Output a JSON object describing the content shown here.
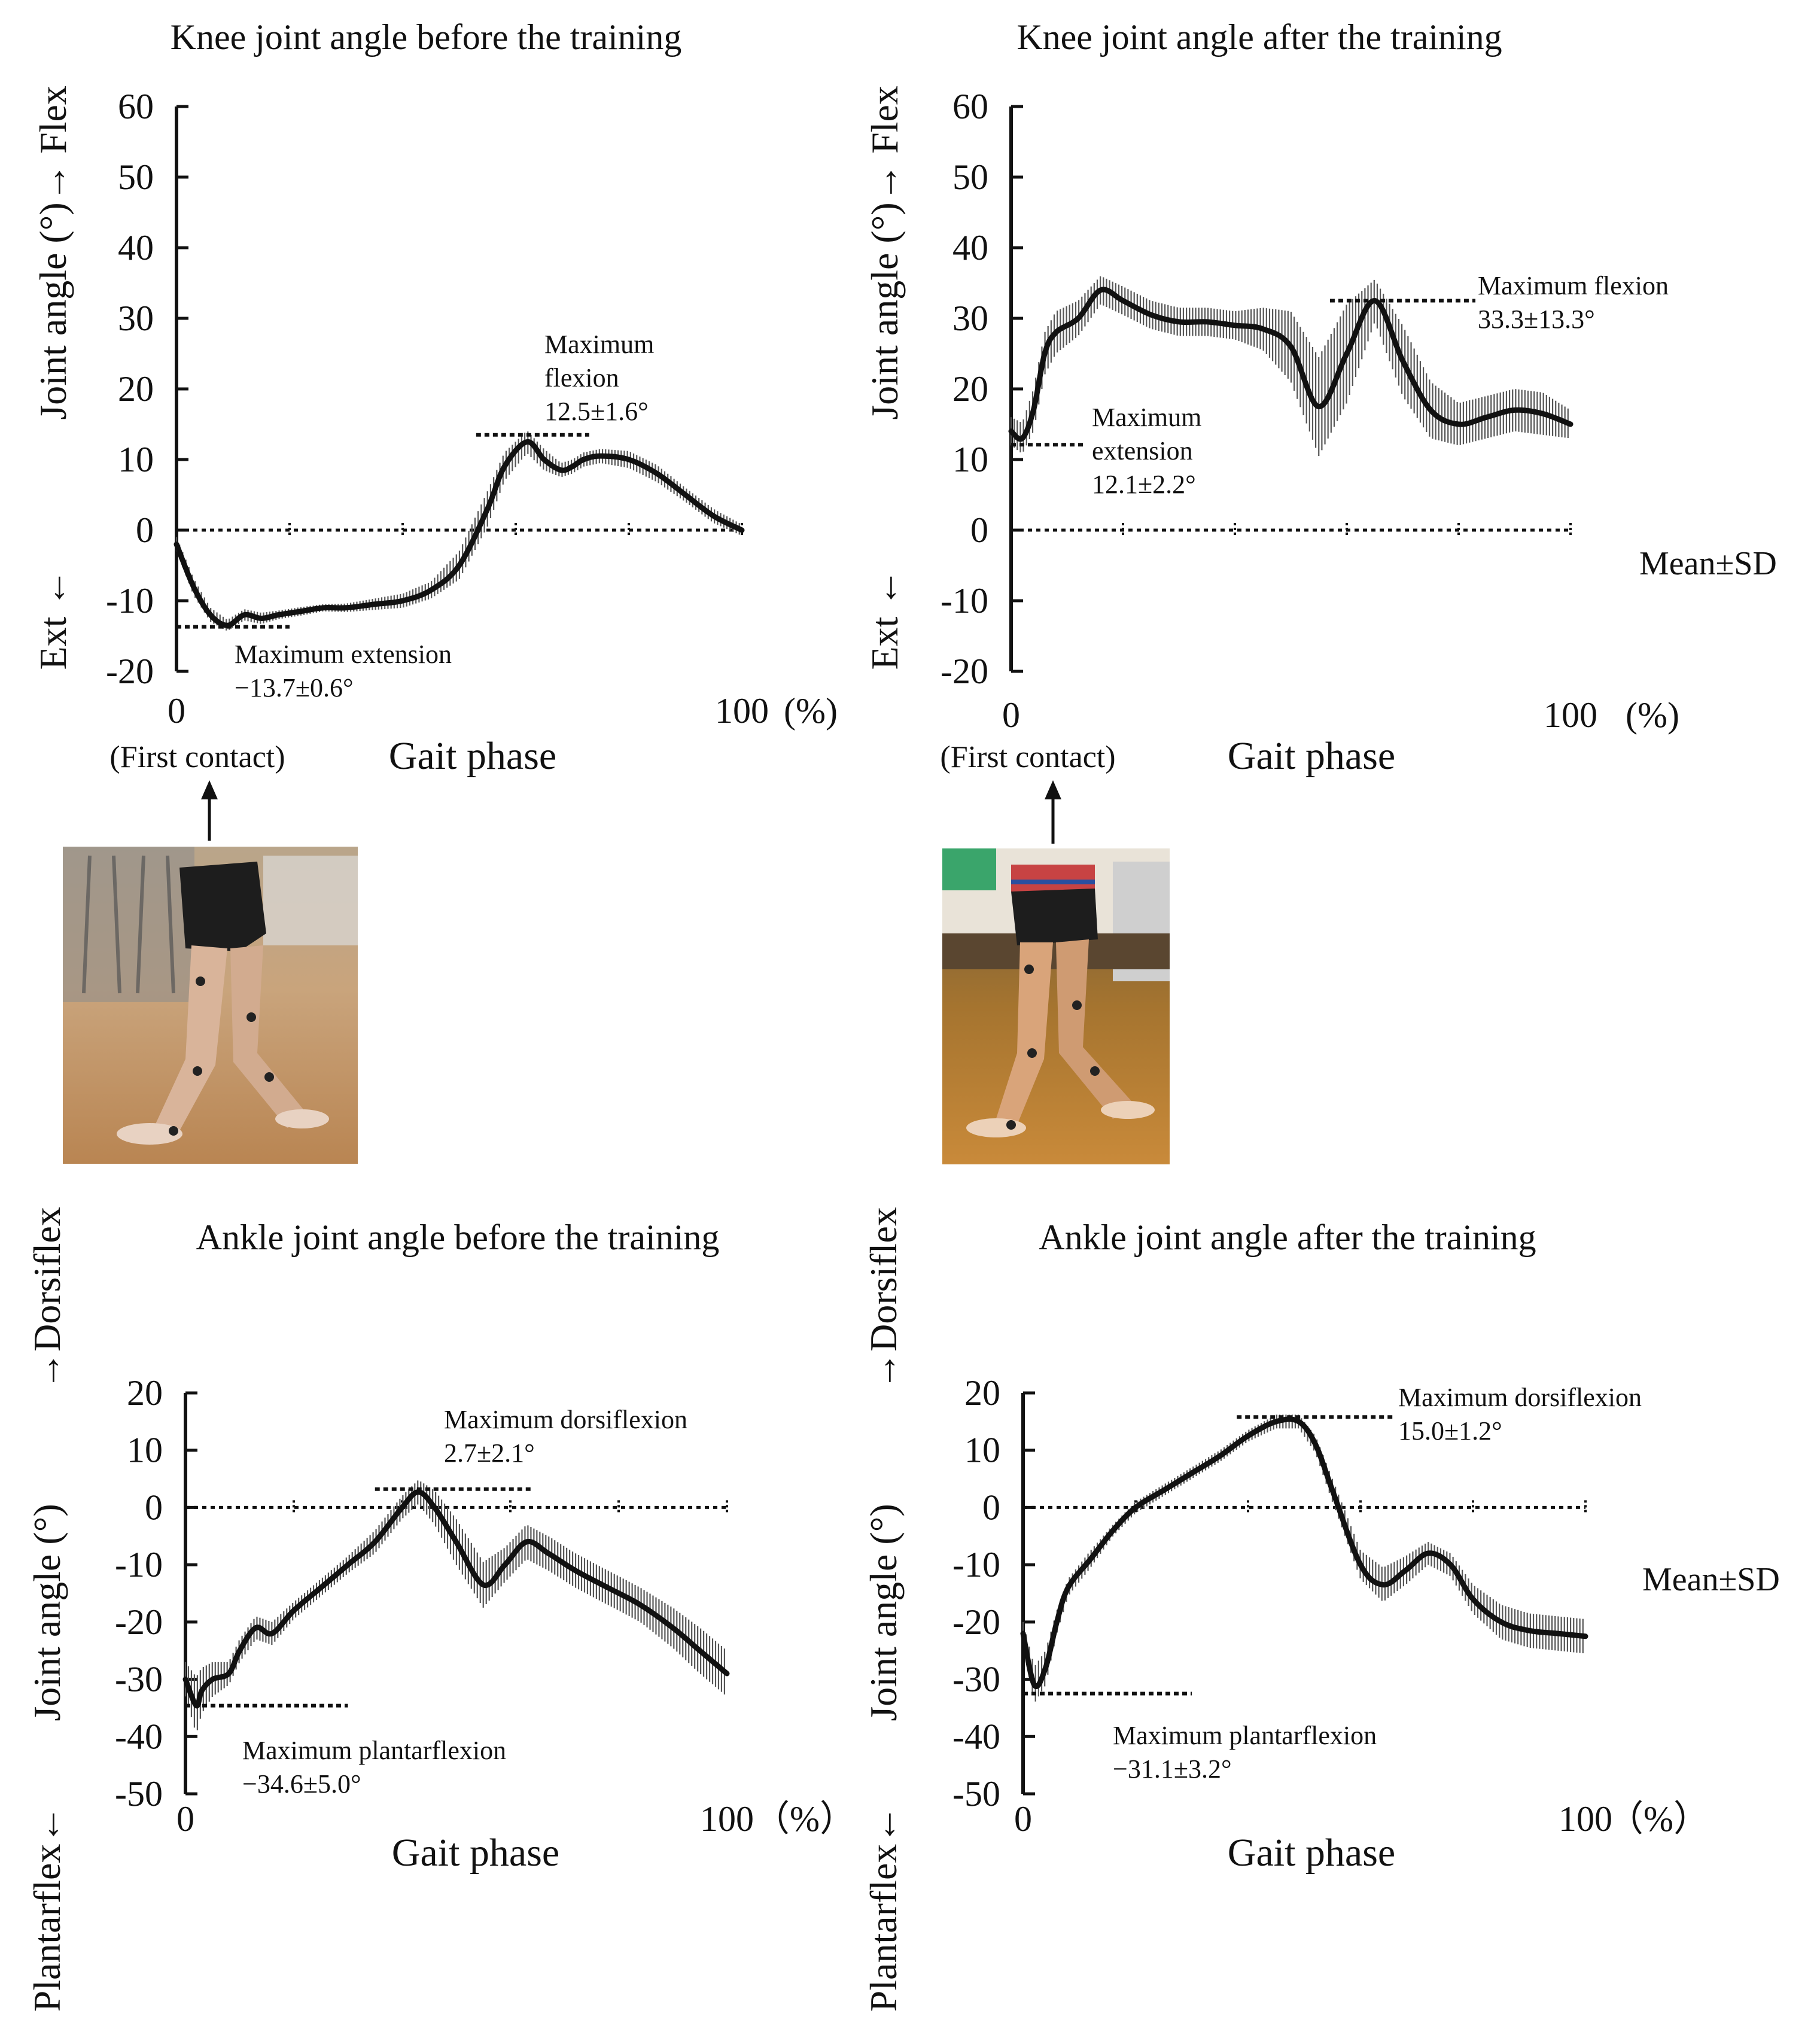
{
  "colors": {
    "line": "#111111",
    "band": "#555555",
    "ref": "#111111",
    "bg": "#ffffff"
  },
  "mean_sd_label": "Mean±SD",
  "first_contact_label": "(First contact)",
  "photos": [
    {
      "name": "before-training-photo",
      "description": "Subject walking at first contact before training"
    },
    {
      "name": "after-training-photo",
      "description": "Subject walking at first contact after training"
    }
  ],
  "chart_data": [
    {
      "id": "knee_before",
      "type": "line",
      "title": "Knee joint angle before the training",
      "xlabel": "Gait phase",
      "x_start_label": "0",
      "x_end_label": "100",
      "x_unit": "(%)",
      "ylabel": "Joint angle (°)",
      "ylabel_pos": "→ Flex",
      "ylabel_neg": "Ext ←",
      "ylim": [
        -20,
        60
      ],
      "yticks": [
        60,
        50,
        40,
        30,
        20,
        10,
        0,
        -10,
        -20
      ],
      "x": [
        0,
        3,
        6,
        9,
        12,
        15,
        18,
        22,
        26,
        30,
        35,
        40,
        45,
        50,
        55,
        58,
        62,
        65,
        68,
        70,
        72,
        75,
        80,
        85,
        90,
        95,
        100
      ],
      "mean": [
        -2,
        -8,
        -12,
        -13.5,
        -12,
        -12.5,
        -12,
        -11.5,
        -11,
        -11,
        -10.5,
        -10,
        -8.5,
        -5,
        3,
        9,
        12.5,
        10,
        8.5,
        9,
        10,
        10.5,
        10,
        8,
        5,
        2,
        0
      ],
      "sd": [
        1,
        1.2,
        1,
        0.8,
        0.8,
        0.8,
        0.6,
        0.6,
        0.5,
        0.6,
        0.8,
        1,
        1.2,
        2,
        2.5,
        2,
        1.6,
        1.5,
        1,
        1,
        1,
        1,
        1.2,
        1.2,
        1,
        1,
        0.8
      ],
      "ref_lines": [
        {
          "value": -13.7,
          "x_from": 0,
          "x_to": 20
        },
        {
          "value": 13.5,
          "x_from": 53,
          "x_to": 73
        }
      ],
      "annotations": [
        {
          "lines": [
            "Maximum",
            "flexion",
            "12.5±1.6°"
          ]
        },
        {
          "lines": [
            "Maximum extension",
            "−13.7±0.6°"
          ]
        }
      ]
    },
    {
      "id": "knee_after",
      "type": "line",
      "title": "Knee joint angle after the training",
      "xlabel": "Gait phase",
      "x_start_label": "0",
      "x_end_label": "100",
      "x_unit": "(%)",
      "ylabel": "Joint angle (°)",
      "ylabel_pos": "→ Flex",
      "ylabel_neg": "Ext ←",
      "ylim": [
        -20,
        60
      ],
      "yticks": [
        60,
        50,
        40,
        30,
        20,
        10,
        0,
        -10,
        -20
      ],
      "x": [
        0,
        2,
        4,
        6,
        8,
        12,
        16,
        20,
        25,
        30,
        35,
        40,
        45,
        50,
        55,
        60,
        65,
        70,
        75,
        80,
        85,
        90,
        95,
        100
      ],
      "mean": [
        14,
        13,
        17,
        25,
        28,
        30,
        34,
        32.5,
        30.5,
        29.5,
        29.5,
        29,
        28.5,
        26,
        17.5,
        25,
        32.5,
        24,
        17,
        15,
        16,
        17,
        16.5,
        15
      ],
      "sd": [
        2,
        2.2,
        3,
        3,
        3,
        2.5,
        2,
        2,
        2,
        2,
        2,
        2,
        3,
        5,
        7,
        7,
        3,
        5,
        4,
        3,
        3,
        3,
        3,
        2
      ],
      "ref_lines": [
        {
          "value": 12.1,
          "x_from": 0,
          "x_to": 13
        },
        {
          "value": 32.5,
          "x_from": 57,
          "x_to": 83
        }
      ],
      "annotations": [
        {
          "lines": [
            "Maximum flexion",
            "33.3±13.3°"
          ]
        },
        {
          "lines": [
            "Maximum",
            "extension",
            "12.1±2.2°"
          ]
        }
      ]
    },
    {
      "id": "ankle_before",
      "type": "line",
      "title": "Ankle joint angle before the training",
      "xlabel": "Gait phase",
      "x_start_label": "0",
      "x_end_label": "100",
      "x_unit": "（%）",
      "ylabel": "Joint angle (°)",
      "ylabel_pos": "→Dorsiflex",
      "ylabel_neg": "Plantarflex←",
      "ylim": [
        -50,
        20
      ],
      "yticks": [
        20,
        10,
        0,
        -10,
        -20,
        -30,
        -40,
        -50
      ],
      "x": [
        0,
        2,
        3,
        5,
        8,
        10,
        13,
        16,
        20,
        25,
        30,
        35,
        40,
        43,
        46,
        50,
        55,
        59,
        63,
        67,
        72,
        78,
        84,
        90,
        95,
        100
      ],
      "mean": [
        -30,
        -34.6,
        -32,
        -30,
        -29,
        -25,
        -21,
        -22,
        -18,
        -14,
        -10,
        -6,
        0,
        2.7,
        0,
        -6,
        -13.5,
        -10,
        -6,
        -8,
        -11,
        -14,
        -17,
        -21,
        -25,
        -29
      ],
      "sd": [
        3,
        5,
        4,
        3,
        2,
        2,
        2,
        2,
        1.5,
        1.5,
        1.5,
        2,
        2,
        2.1,
        3,
        4,
        4,
        3,
        3,
        3,
        3,
        3,
        3,
        3.5,
        4,
        4
      ],
      "ref_lines": [
        {
          "value": -34.6,
          "x_from": 0,
          "x_to": 30
        },
        {
          "value": 3.2,
          "x_from": 35,
          "x_to": 64
        }
      ],
      "annotations": [
        {
          "lines": [
            "Maximum dorsiflexion",
            "2.7±2.1°"
          ]
        },
        {
          "lines": [
            "Maximum plantarflexion",
            "−34.6±5.0°"
          ]
        }
      ]
    },
    {
      "id": "ankle_after",
      "type": "line",
      "title": "Ankle joint angle after the training",
      "xlabel": "Gait phase",
      "x_start_label": "0",
      "x_end_label": "100",
      "x_unit": "（%）",
      "ylabel": "Joint angle (°)",
      "ylabel_pos": "→Dorsiflex",
      "ylabel_neg": "Plantarflex←",
      "ylim": [
        -50,
        20
      ],
      "yticks": [
        20,
        10,
        0,
        -10,
        -20,
        -30,
        -40,
        -50
      ],
      "x": [
        0,
        2,
        4,
        6,
        8,
        12,
        16,
        20,
        25,
        30,
        35,
        40,
        45,
        49,
        52,
        55,
        60,
        64,
        68,
        72,
        76,
        80,
        85,
        90,
        95,
        100
      ],
      "mean": [
        -22,
        -31,
        -28,
        -20,
        -14,
        -9,
        -4,
        0,
        3,
        6,
        9,
        12.5,
        15,
        15,
        11,
        3,
        -10,
        -13.5,
        -11,
        -8,
        -10,
        -16,
        -20,
        -21.5,
        -22,
        -22.5
      ],
      "sd": [
        2,
        3.2,
        3,
        2,
        1.5,
        1.5,
        1,
        1,
        1,
        1,
        1,
        1,
        1.2,
        1.2,
        1.5,
        2,
        2.5,
        3,
        2.5,
        2,
        2,
        2.5,
        3,
        3,
        3,
        3
      ],
      "ref_lines": [
        {
          "value": 15.8,
          "x_from": 38,
          "x_to": 66
        },
        {
          "value": -32.5,
          "x_from": 0,
          "x_to": 30
        }
      ],
      "annotations": [
        {
          "lines": [
            "Maximum dorsiflexion",
            "15.0±1.2°"
          ]
        },
        {
          "lines": [
            "Maximum plantarflexion",
            "−31.1±3.2°"
          ]
        }
      ]
    }
  ]
}
